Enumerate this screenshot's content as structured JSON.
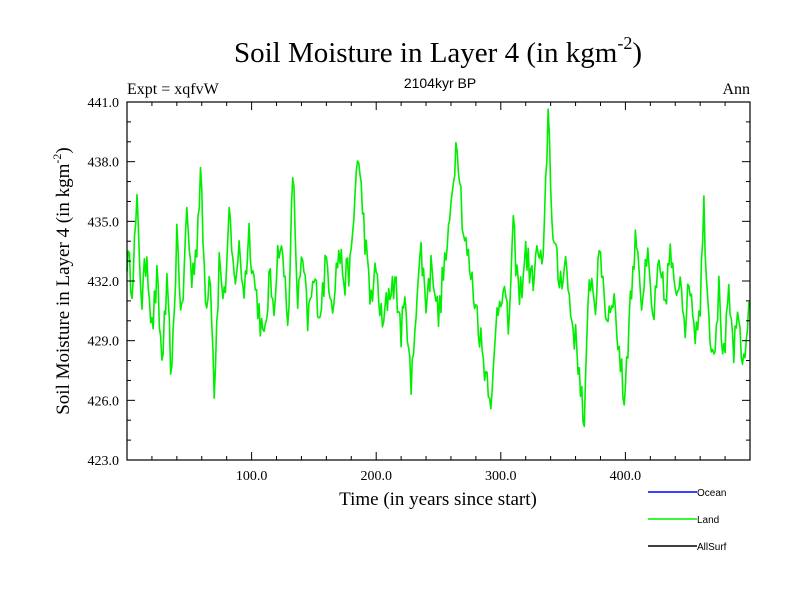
{
  "chart_data": {
    "type": "line",
    "title": "Soil Moisture in Layer 4 (in kgm",
    "title_sup": "-2",
    "title_close": ")",
    "subtitle": "2104kyr BP",
    "left_label": "Expt = xqfvW",
    "right_label": "Ann",
    "xlabel": "Time (in years since start)",
    "ylabel": "Soil Moisture in Layer 4 (in kgm",
    "ylabel_sup": "-2",
    "ylabel_close": ")",
    "xlim": [
      0,
      500
    ],
    "ylim": [
      423,
      441
    ],
    "x_ticks": [
      100,
      200,
      300,
      400
    ],
    "x_tick_labels": [
      "100.0",
      "200.0",
      "300.0",
      "400.0"
    ],
    "y_ticks": [
      423,
      426,
      429,
      432,
      435,
      438,
      441
    ],
    "y_tick_labels": [
      "423.0",
      "426.0",
      "429.0",
      "432.0",
      "435.0",
      "438.0",
      "441.0"
    ],
    "legend": [
      {
        "name": "Ocean",
        "color": "#0000ff"
      },
      {
        "name": "Land",
        "color": "#00ee00"
      },
      {
        "name": "AllSurf",
        "color": "#000000"
      }
    ],
    "series": [
      {
        "name": "Land",
        "color": "#00ee00",
        "keypoints": [
          [
            0,
            433.2
          ],
          [
            4,
            432.0
          ],
          [
            8,
            435.6
          ],
          [
            12,
            431.0
          ],
          [
            16,
            433.5
          ],
          [
            20,
            429.5
          ],
          [
            24,
            432.0
          ],
          [
            28,
            428.0
          ],
          [
            32,
            431.5
          ],
          [
            36,
            427.0
          ],
          [
            40,
            434.5
          ],
          [
            44,
            430.0
          ],
          [
            48,
            435.5
          ],
          [
            52,
            432.0
          ],
          [
            56,
            434.0
          ],
          [
            59,
            437.4
          ],
          [
            63,
            431.0
          ],
          [
            67,
            432.5
          ],
          [
            70,
            426.6
          ],
          [
            74,
            433.0
          ],
          [
            78,
            431.0
          ],
          [
            82,
            435.0
          ],
          [
            86,
            432.0
          ],
          [
            90,
            433.5
          ],
          [
            94,
            431.5
          ],
          [
            98,
            434.5
          ],
          [
            102,
            432.0
          ],
          [
            106,
            430.5
          ],
          [
            110,
            428.7
          ],
          [
            114,
            432.0
          ],
          [
            118,
            431.0
          ],
          [
            122,
            434.0
          ],
          [
            126,
            432.5
          ],
          [
            130,
            430.0
          ],
          [
            133,
            437.7
          ],
          [
            137,
            431.0
          ],
          [
            141,
            433.0
          ],
          [
            145,
            430.0
          ],
          [
            150,
            432.0
          ],
          [
            155,
            430.5
          ],
          [
            160,
            433.0
          ],
          [
            165,
            431.0
          ],
          [
            170,
            433.5
          ],
          [
            175,
            432.0
          ],
          [
            180,
            433.0
          ],
          [
            185,
            438.5
          ],
          [
            190,
            435.0
          ],
          [
            195,
            431.0
          ],
          [
            200,
            432.5
          ],
          [
            205,
            429.5
          ],
          [
            210,
            431.5
          ],
          [
            215,
            432.0
          ],
          [
            220,
            429.5
          ],
          [
            224,
            431.0
          ],
          [
            228,
            426.3
          ],
          [
            232,
            431.0
          ],
          [
            236,
            433.5
          ],
          [
            240,
            431.0
          ],
          [
            245,
            433.0
          ],
          [
            250,
            430.0
          ],
          [
            254,
            432.5
          ],
          [
            258,
            434.0
          ],
          [
            262,
            437.5
          ],
          [
            265,
            439.3
          ],
          [
            270,
            434.5
          ],
          [
            274,
            433.0
          ],
          [
            278,
            431.5
          ],
          [
            282,
            430.0
          ],
          [
            286,
            428.0
          ],
          [
            290,
            427.0
          ],
          [
            293,
            426.0
          ],
          [
            297,
            430.5
          ],
          [
            302,
            432.0
          ],
          [
            306,
            429.5
          ],
          [
            310,
            434.5
          ],
          [
            315,
            431.0
          ],
          [
            320,
            433.5
          ],
          [
            325,
            432.0
          ],
          [
            330,
            433.5
          ],
          [
            334,
            432.5
          ],
          [
            338,
            440.7
          ],
          [
            342,
            434.0
          ],
          [
            347,
            432.0
          ],
          [
            352,
            433.0
          ],
          [
            356,
            430.5
          ],
          [
            360,
            429.0
          ],
          [
            364,
            427.0
          ],
          [
            367,
            424.3
          ],
          [
            371,
            432.5
          ],
          [
            376,
            431.0
          ],
          [
            380,
            433.5
          ],
          [
            385,
            430.0
          ],
          [
            390,
            431.5
          ],
          [
            395,
            428.5
          ],
          [
            399,
            426.0
          ],
          [
            404,
            431.0
          ],
          [
            409,
            434.5
          ],
          [
            413,
            431.0
          ],
          [
            418,
            433.0
          ],
          [
            422,
            430.0
          ],
          [
            427,
            432.5
          ],
          [
            432,
            431.0
          ],
          [
            436,
            433.5
          ],
          [
            440,
            431.0
          ],
          [
            444,
            432.5
          ],
          [
            448,
            430.0
          ],
          [
            452,
            432.0
          ],
          [
            456,
            429.5
          ],
          [
            460,
            431.0
          ],
          [
            463,
            435.7
          ],
          [
            467,
            430.0
          ],
          [
            471,
            428.5
          ],
          [
            475,
            431.5
          ],
          [
            479,
            428.0
          ],
          [
            483,
            431.0
          ],
          [
            487,
            428.5
          ],
          [
            491,
            430.0
          ],
          [
            495,
            427.5
          ],
          [
            500,
            431.5
          ]
        ]
      }
    ]
  }
}
